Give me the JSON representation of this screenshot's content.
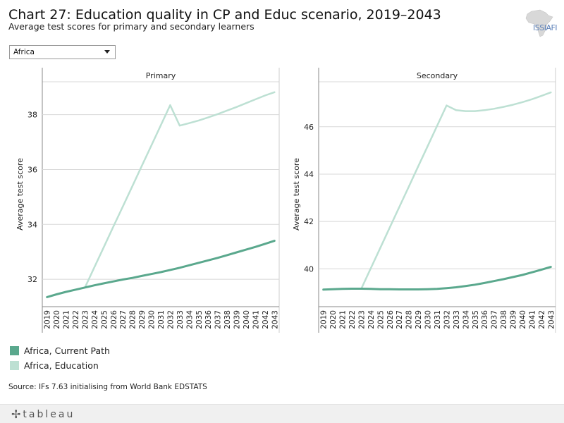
{
  "header": {
    "title": "Chart 27: Education quality in CP and Educ scenario, 2019–2043",
    "subtitle": "Average test scores for primary and secondary learners",
    "logo_text": "ISSIAFI"
  },
  "filter": {
    "selected": "Africa"
  },
  "colors": {
    "current_path": "#5aa88d",
    "education": "#bde0d3",
    "grid": "#d8d8d8",
    "axis": "#888888"
  },
  "chart_data": [
    {
      "type": "line",
      "panel_title": "Primary",
      "ylabel": "Average test score",
      "ylim": [
        31.0,
        39.2
      ],
      "yticks": [
        32,
        34,
        36,
        38
      ],
      "x": [
        2019,
        2020,
        2021,
        2022,
        2023,
        2024,
        2025,
        2026,
        2027,
        2028,
        2029,
        2030,
        2031,
        2032,
        2033,
        2034,
        2035,
        2036,
        2037,
        2038,
        2039,
        2040,
        2041,
        2042,
        2043
      ],
      "series": [
        {
          "name": "Africa, Current Path",
          "values": [
            31.35,
            31.45,
            31.54,
            31.62,
            31.7,
            31.78,
            31.85,
            31.92,
            31.99,
            32.05,
            32.12,
            32.19,
            32.26,
            32.34,
            32.42,
            32.51,
            32.6,
            32.69,
            32.78,
            32.88,
            32.98,
            33.08,
            33.18,
            33.29,
            33.4
          ]
        },
        {
          "name": "Africa, Education",
          "values": [
            null,
            null,
            null,
            null,
            31.7,
            32.44,
            33.18,
            33.92,
            34.65,
            35.39,
            36.13,
            36.87,
            37.61,
            38.35,
            37.6,
            37.69,
            37.79,
            37.9,
            38.02,
            38.15,
            38.28,
            38.42,
            38.56,
            38.7,
            38.82
          ]
        }
      ]
    },
    {
      "type": "line",
      "panel_title": "Secondary",
      "ylabel": "Average test score",
      "ylim": [
        38.4,
        47.9
      ],
      "yticks": [
        40,
        42,
        44,
        46
      ],
      "x": [
        2019,
        2020,
        2021,
        2022,
        2023,
        2024,
        2025,
        2026,
        2027,
        2028,
        2029,
        2030,
        2031,
        2032,
        2033,
        2034,
        2035,
        2036,
        2037,
        2038,
        2039,
        2040,
        2041,
        2042,
        2043
      ],
      "series": [
        {
          "name": "Africa, Current Path",
          "values": [
            39.12,
            39.14,
            39.15,
            39.16,
            39.16,
            39.15,
            39.14,
            39.14,
            39.13,
            39.13,
            39.13,
            39.14,
            39.15,
            39.18,
            39.22,
            39.27,
            39.33,
            39.4,
            39.48,
            39.56,
            39.65,
            39.74,
            39.85,
            39.96,
            40.08
          ]
        },
        {
          "name": "Africa, Education",
          "values": [
            null,
            null,
            null,
            null,
            39.16,
            40.02,
            40.88,
            41.74,
            42.6,
            43.46,
            44.32,
            45.18,
            46.04,
            46.9,
            46.7,
            46.66,
            46.66,
            46.7,
            46.76,
            46.84,
            46.93,
            47.04,
            47.16,
            47.3,
            47.45
          ]
        }
      ]
    }
  ],
  "legend": [
    {
      "label": "Africa, Current Path",
      "color": "#5aa88d"
    },
    {
      "label": "Africa, Education",
      "color": "#bde0d3"
    }
  ],
  "footer": {
    "source": "Source: IFs 7.63 initialising from World Bank EDSTATS",
    "brand": "tableau"
  }
}
